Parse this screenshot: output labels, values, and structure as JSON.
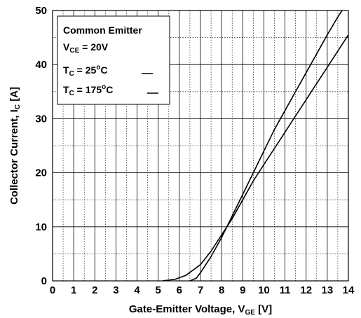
{
  "chart_data": {
    "type": "line",
    "xlabel": {
      "main": "Gate-Emitter Voltage, V",
      "sub": "GE",
      "unit": " [V]"
    },
    "ylabel": {
      "main": "Collector Current, I",
      "sub": "C",
      "unit": " [A]"
    },
    "xlim": [
      0,
      14
    ],
    "ylim": [
      0,
      50
    ],
    "x_ticks": [
      "0",
      "1",
      "2",
      "3",
      "4",
      "5",
      "6",
      "7",
      "8",
      "9",
      "10",
      "11",
      "12",
      "13",
      "14"
    ],
    "y_ticks": [
      "0",
      "10",
      "20",
      "30",
      "40",
      "50"
    ],
    "grid": true,
    "legend_position": "top-left",
    "legend": {
      "line1": "Common Emitter",
      "line2": {
        "main": "V",
        "sub": "CE",
        "rest": " = 20V"
      },
      "line3": {
        "main": "T",
        "sub": "C",
        "mid": " = 25",
        "sup": "o",
        "rest": "C"
      },
      "line4": {
        "main": "T",
        "sub": "C",
        "mid": " = 175",
        "sup": "o",
        "rest": "C"
      }
    },
    "series": [
      {
        "name": "TC = 25°C",
        "x": [
          6.5,
          6.8,
          7.0,
          7.5,
          8.0,
          8.5,
          9.0,
          9.5,
          10.0,
          10.5,
          11.0,
          11.5,
          12.0,
          12.5,
          13.0,
          13.5,
          13.7
        ],
        "y": [
          0,
          0.5,
          1.5,
          4.5,
          8.0,
          12.0,
          16.0,
          20.0,
          24.0,
          28.0,
          31.5,
          35.0,
          38.5,
          42.0,
          45.5,
          48.8,
          50.0
        ]
      },
      {
        "name": "TC = 175°C",
        "x": [
          5.2,
          5.8,
          6.3,
          7.0,
          7.5,
          8.0,
          8.5,
          9.0,
          9.5,
          10.0,
          10.5,
          11.0,
          11.5,
          12.0,
          12.5,
          13.0,
          13.5,
          14.0
        ],
        "y": [
          0,
          0.3,
          1.0,
          3.0,
          5.5,
          8.5,
          11.5,
          15.0,
          18.5,
          21.5,
          24.5,
          27.5,
          30.5,
          33.5,
          36.5,
          39.5,
          42.5,
          45.5
        ]
      }
    ]
  }
}
